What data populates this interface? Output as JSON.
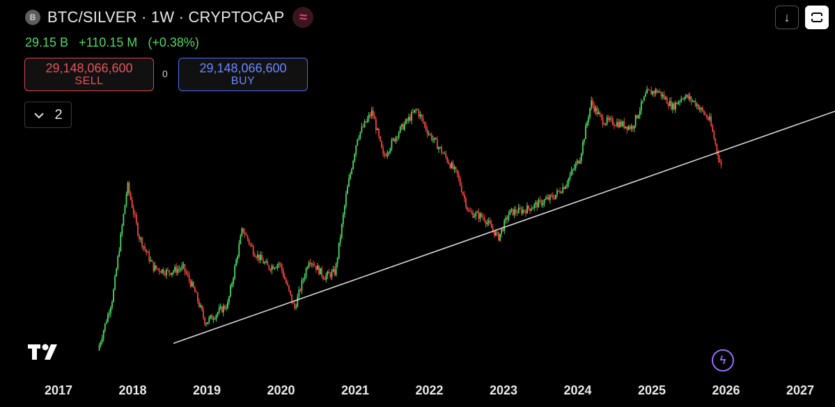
{
  "symbol": {
    "badge": "B",
    "title": "BTC/SILVER · 1W · CRYPTOCAP",
    "indicator_icon": "wave-icon"
  },
  "quote": {
    "last": "29.15 B",
    "change": "+110.15 M",
    "change_pct": "(+0.38%)"
  },
  "trade": {
    "sell_price": "29,148,066,600",
    "sell_label": "SELL",
    "spread": "0",
    "buy_price": "29,148,066,600",
    "buy_label": "BUY"
  },
  "collapse_count": "2",
  "toolbar": {
    "download_icon": "download-icon",
    "fullscreen_icon": "fullscreen-icon"
  },
  "colors": {
    "up": "#4cd964",
    "down": "#f2453d",
    "trendline": "#d9d9d9",
    "sell": "#e0454f",
    "buy": "#4a6cf7"
  },
  "chart_data": {
    "type": "candlestick",
    "x_ticks": [
      "2017",
      "2018",
      "2019",
      "2020",
      "2021",
      "2022",
      "2023",
      "2024",
      "2025",
      "2026",
      "2027"
    ],
    "x_range": [
      2017.0,
      2027.55
    ],
    "y_scale": "log",
    "y_range_relative": [
      0.0,
      1.0
    ],
    "keypoints": [
      [
        2017.55,
        0.02
      ],
      [
        2017.75,
        0.25
      ],
      [
        2017.95,
        0.74
      ],
      [
        2018.1,
        0.52
      ],
      [
        2018.3,
        0.38
      ],
      [
        2018.5,
        0.36
      ],
      [
        2018.7,
        0.38
      ],
      [
        2018.85,
        0.28
      ],
      [
        2019.0,
        0.14
      ],
      [
        2019.3,
        0.22
      ],
      [
        2019.5,
        0.55
      ],
      [
        2019.65,
        0.45
      ],
      [
        2019.85,
        0.38
      ],
      [
        2020.0,
        0.4
      ],
      [
        2020.2,
        0.2
      ],
      [
        2020.4,
        0.42
      ],
      [
        2020.6,
        0.34
      ],
      [
        2020.75,
        0.36
      ],
      [
        2020.9,
        0.7
      ],
      [
        2021.05,
        0.95
      ],
      [
        2021.25,
        1.06
      ],
      [
        2021.4,
        0.86
      ],
      [
        2021.6,
        0.97
      ],
      [
        2021.85,
        1.07
      ],
      [
        2022.0,
        0.97
      ],
      [
        2022.2,
        0.88
      ],
      [
        2022.4,
        0.78
      ],
      [
        2022.55,
        0.62
      ],
      [
        2022.75,
        0.6
      ],
      [
        2022.95,
        0.51
      ],
      [
        2023.1,
        0.62
      ],
      [
        2023.3,
        0.63
      ],
      [
        2023.5,
        0.66
      ],
      [
        2023.7,
        0.69
      ],
      [
        2023.85,
        0.74
      ],
      [
        2024.05,
        0.86
      ],
      [
        2024.2,
        1.1
      ],
      [
        2024.35,
        1.02
      ],
      [
        2024.55,
        1.01
      ],
      [
        2024.75,
        0.99
      ],
      [
        2024.95,
        1.14
      ],
      [
        2025.1,
        1.15
      ],
      [
        2025.3,
        1.08
      ],
      [
        2025.45,
        1.13
      ],
      [
        2025.6,
        1.1
      ],
      [
        2025.8,
        1.02
      ],
      [
        2025.95,
        0.82
      ]
    ],
    "trendline": {
      "from": [
        2018.55,
        0.05
      ],
      "to": [
        2027.55,
        1.07
      ]
    }
  }
}
